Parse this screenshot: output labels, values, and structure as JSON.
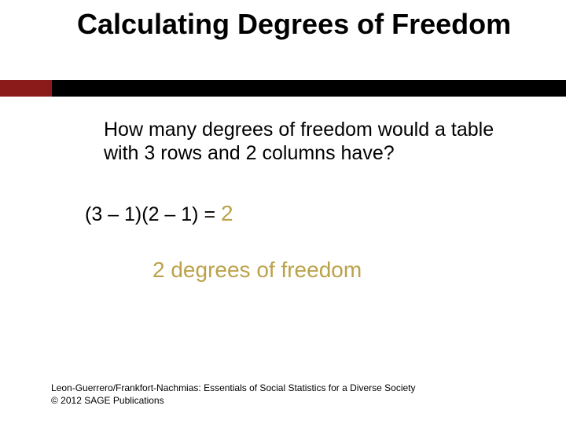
{
  "title": "Calculating Degrees of Freedom",
  "accent": {
    "black": "#000000",
    "red": "#8b1a1a"
  },
  "accent_olive": "#bba24a",
  "question": "How many degrees of freedom would a table with 3 rows and 2 columns have?",
  "calc": {
    "expression": "(3 – 1)(2 – 1) = ",
    "result": "2"
  },
  "answer": "2 degrees of freedom",
  "footer": {
    "line1": "Leon-Guerrero/Frankfort-Nachmias: Essentials of Social Statistics for a Diverse Society",
    "line2": "© 2012 SAGE Publications"
  },
  "typography": {
    "title_fontsize": 36,
    "body_fontsize": 25,
    "answer_fontsize": 28,
    "footer_fontsize": 12,
    "font_family": "Arial"
  }
}
